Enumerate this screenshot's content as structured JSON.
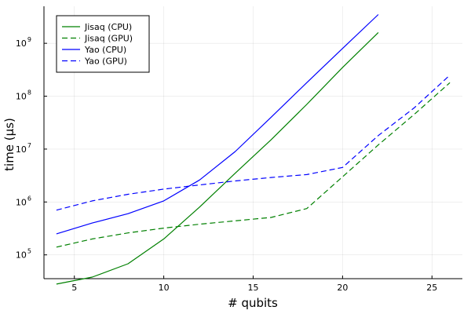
{
  "chart_data": {
    "type": "line",
    "title": "",
    "xlabel": "# qubits",
    "ylabel": "time (µs)",
    "xlim": [
      3.3,
      26.7
    ],
    "ylim_log10": [
      4.55,
      9.7
    ],
    "y_scale": "log10",
    "grid": true,
    "legend_position": "top-left",
    "x_ticks": [
      5,
      10,
      15,
      20,
      25
    ],
    "y_ticks": [
      {
        "value": 5,
        "base": "10",
        "exp": "5"
      },
      {
        "value": 6,
        "base": "10",
        "exp": "6"
      },
      {
        "value": 7,
        "base": "10",
        "exp": "7"
      },
      {
        "value": 8,
        "base": "10",
        "exp": "8"
      },
      {
        "value": 9,
        "base": "10",
        "exp": "9"
      }
    ],
    "series": [
      {
        "name": "Jisaq (CPU)",
        "color": "#008000",
        "dash": "solid",
        "x": [
          4,
          6,
          8,
          10,
          12,
          14,
          16,
          18,
          20,
          22
        ],
        "y": [
          28000,
          38000,
          68000,
          200000,
          800000,
          3500000,
          15000000,
          70000000,
          350000000,
          1600000000
        ]
      },
      {
        "name": "Jisaq (GPU)",
        "color": "#008000",
        "dash": "dashed",
        "x": [
          4,
          6,
          8,
          10,
          12,
          14,
          16,
          18,
          20,
          22,
          24,
          26
        ],
        "y": [
          140000,
          200000,
          260000,
          320000,
          380000,
          440000,
          510000,
          750000,
          3000000,
          12000000,
          45000000,
          180000000
        ]
      },
      {
        "name": "Yao (CPU)",
        "color": "#0000ff",
        "dash": "solid",
        "x": [
          4,
          6,
          8,
          10,
          12,
          14,
          16,
          18,
          20,
          22
        ],
        "y": [
          250000,
          400000,
          600000,
          1050000,
          2600000,
          9000000,
          40000000,
          180000000,
          800000000,
          3500000000
        ]
      },
      {
        "name": "Yao (GPU)",
        "color": "#0000ff",
        "dash": "dashed",
        "x": [
          4,
          6,
          8,
          10,
          12,
          14,
          16,
          18,
          20,
          22,
          24,
          26
        ],
        "y": [
          700000,
          1050000,
          1400000,
          1750000,
          2100000,
          2500000,
          2900000,
          3300000,
          4500000,
          18000000,
          60000000,
          250000000
        ]
      }
    ]
  }
}
